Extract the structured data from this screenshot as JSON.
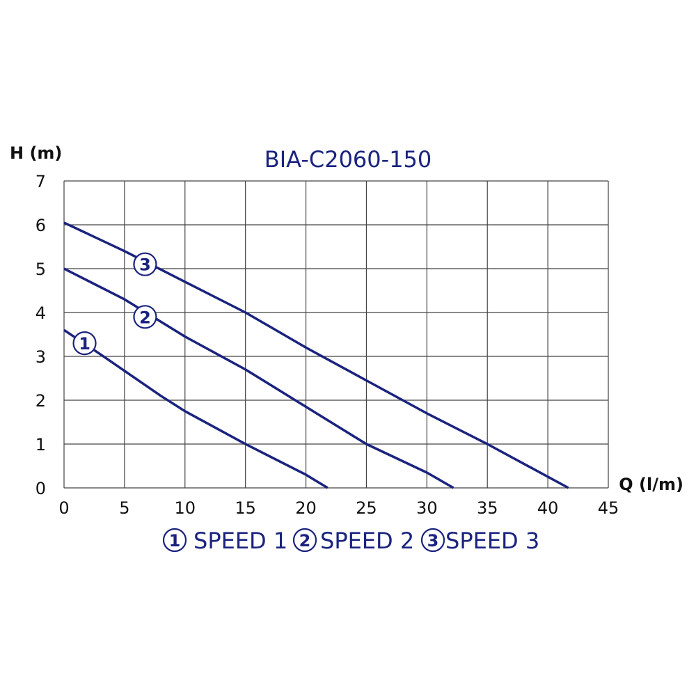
{
  "chart_data": {
    "type": "line",
    "title": "BIA-C2060-150",
    "xlabel": "Q (l/m)",
    "ylabel": "H (m)",
    "xlim": [
      0,
      45
    ],
    "ylim": [
      0,
      7
    ],
    "xticks": [
      "0",
      "5",
      "10",
      "15",
      "20",
      "25",
      "30",
      "35",
      "40",
      "45"
    ],
    "yticks": [
      "0",
      "1",
      "2",
      "3",
      "4",
      "5",
      "6",
      "7"
    ],
    "grid": true,
    "legend_position": "bottom",
    "series": [
      {
        "name": "SPEED 1",
        "marker": "1",
        "points": [
          [
            0,
            3.6
          ],
          [
            3,
            3.05
          ],
          [
            8,
            2.1
          ],
          [
            10,
            1.75
          ],
          [
            15,
            1.0
          ],
          [
            20,
            0.3
          ],
          [
            21.8,
            0
          ]
        ]
      },
      {
        "name": "SPEED 2",
        "marker": "2",
        "points": [
          [
            0,
            5.0
          ],
          [
            5,
            4.3
          ],
          [
            10,
            3.45
          ],
          [
            15,
            2.7
          ],
          [
            20,
            1.85
          ],
          [
            25,
            1.0
          ],
          [
            30,
            0.35
          ],
          [
            32.2,
            0
          ]
        ]
      },
      {
        "name": "SPEED 3",
        "marker": "3",
        "points": [
          [
            0,
            6.05
          ],
          [
            5,
            5.4
          ],
          [
            10,
            4.7
          ],
          [
            15,
            4.0
          ],
          [
            20,
            3.2
          ],
          [
            25,
            2.45
          ],
          [
            30,
            1.7
          ],
          [
            35,
            1.0
          ],
          [
            41.7,
            0
          ]
        ]
      }
    ],
    "marker_positions": [
      [
        1.7,
        3.3
      ],
      [
        6.7,
        3.9
      ],
      [
        6.7,
        5.1
      ]
    ],
    "colors": {
      "line": "#1a237e",
      "text": "#1a237e",
      "grid": "#444444",
      "axis_text": "#111111"
    }
  }
}
